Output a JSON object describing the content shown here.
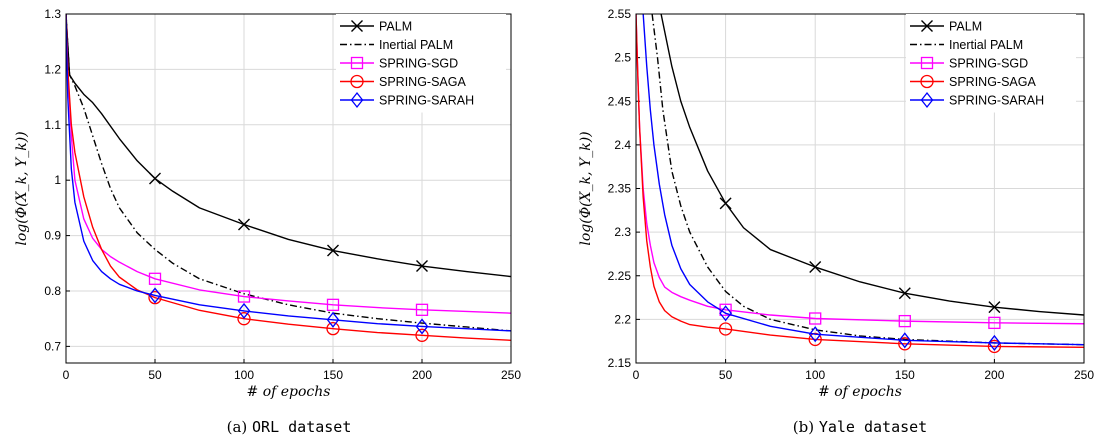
{
  "colors": {
    "palm": "#000000",
    "inertial_palm": "#000000",
    "sgd": "#ff00ff",
    "saga": "#ff0000",
    "sarah": "#0000ff"
  },
  "chart_data": [
    {
      "type": "line",
      "caption_prefix": "(a) ",
      "caption_dataset": "ORL dataset",
      "xlabel": "# of epochs",
      "ylabel": "log(Φ(X_k, Y_k))",
      "xlim": [
        0,
        250
      ],
      "ylim": [
        0.67,
        1.3
      ],
      "xticks": [
        "0",
        "50",
        "100",
        "150",
        "200",
        "250"
      ],
      "yticks": [
        "0.7",
        "0.8",
        "0.9",
        "1",
        "1.1",
        "1.2",
        "1.3"
      ],
      "grid": true,
      "legend_position": "top-right",
      "series": [
        {
          "name": "PALM",
          "style": "solid",
          "marker": "x",
          "x": [
            0,
            2,
            5,
            10,
            15,
            20,
            30,
            40,
            50,
            60,
            75,
            100,
            125,
            150,
            175,
            200,
            225,
            250
          ],
          "y": [
            1.3,
            1.19,
            1.175,
            1.155,
            1.14,
            1.12,
            1.075,
            1.035,
            1.003,
            0.98,
            0.95,
            0.92,
            0.893,
            0.873,
            0.858,
            0.845,
            0.835,
            0.826
          ]
        },
        {
          "name": "Inertial PALM",
          "style": "dashdot",
          "marker": "none",
          "x": [
            0,
            2,
            5,
            10,
            15,
            20,
            25,
            30,
            40,
            50,
            60,
            75,
            100,
            125,
            150,
            175,
            200,
            225,
            250
          ],
          "y": [
            1.3,
            1.19,
            1.17,
            1.13,
            1.08,
            1.03,
            0.985,
            0.95,
            0.905,
            0.875,
            0.85,
            0.822,
            0.795,
            0.775,
            0.76,
            0.75,
            0.742,
            0.735,
            0.728
          ]
        },
        {
          "name": "SPRING-SGD",
          "style": "solid",
          "marker": "square",
          "x": [
            0,
            1,
            3,
            5,
            10,
            15,
            20,
            25,
            30,
            40,
            50,
            75,
            100,
            125,
            150,
            175,
            200,
            225,
            250
          ],
          "y": [
            1.3,
            1.2,
            1.08,
            1.0,
            0.93,
            0.895,
            0.875,
            0.862,
            0.852,
            0.835,
            0.822,
            0.802,
            0.79,
            0.782,
            0.775,
            0.77,
            0.766,
            0.763,
            0.76
          ]
        },
        {
          "name": "SPRING-SAGA",
          "style": "solid",
          "marker": "circle",
          "x": [
            0,
            1,
            3,
            5,
            10,
            15,
            20,
            25,
            30,
            40,
            50,
            75,
            100,
            125,
            150,
            175,
            200,
            225,
            250
          ],
          "y": [
            1.3,
            1.2,
            1.1,
            1.05,
            0.97,
            0.915,
            0.875,
            0.845,
            0.825,
            0.802,
            0.788,
            0.765,
            0.75,
            0.74,
            0.732,
            0.725,
            0.72,
            0.715,
            0.711
          ]
        },
        {
          "name": "SPRING-SARAH",
          "style": "solid",
          "marker": "diamond",
          "x": [
            0,
            1,
            3,
            5,
            10,
            15,
            20,
            25,
            30,
            40,
            50,
            75,
            100,
            125,
            150,
            175,
            200,
            225,
            250
          ],
          "y": [
            1.3,
            1.15,
            1.02,
            0.96,
            0.89,
            0.855,
            0.835,
            0.822,
            0.812,
            0.8,
            0.792,
            0.775,
            0.764,
            0.755,
            0.748,
            0.741,
            0.736,
            0.732,
            0.728
          ]
        }
      ]
    },
    {
      "type": "line",
      "caption_prefix": "(b) ",
      "caption_dataset": "Yale dataset",
      "xlabel": "# of epochs",
      "ylabel": "log(Φ(X_k, Y_k))",
      "xlim": [
        0,
        250
      ],
      "ylim": [
        2.15,
        2.55
      ],
      "xticks": [
        "0",
        "50",
        "100",
        "150",
        "200",
        "250"
      ],
      "yticks": [
        "2.15",
        "2.2",
        "2.25",
        "2.3",
        "2.35",
        "2.4",
        "2.45",
        "2.5",
        "2.55"
      ],
      "grid": true,
      "legend_position": "top-right",
      "series": [
        {
          "name": "PALM",
          "style": "solid",
          "marker": "x",
          "x": [
            14,
            20,
            25,
            30,
            40,
            50,
            60,
            75,
            100,
            125,
            150,
            175,
            200,
            225,
            250
          ],
          "y": [
            2.55,
            2.49,
            2.45,
            2.42,
            2.37,
            2.333,
            2.305,
            2.28,
            2.26,
            2.243,
            2.23,
            2.221,
            2.214,
            2.209,
            2.205
          ]
        },
        {
          "name": "Inertial PALM",
          "style": "dashdot",
          "marker": "none",
          "x": [
            9,
            12,
            15,
            20,
            25,
            30,
            40,
            50,
            60,
            75,
            100,
            125,
            150,
            175,
            200,
            225,
            250
          ],
          "y": [
            2.55,
            2.5,
            2.44,
            2.37,
            2.33,
            2.3,
            2.26,
            2.232,
            2.215,
            2.2,
            2.188,
            2.181,
            2.177,
            2.175,
            2.173,
            2.172,
            2.171
          ]
        },
        {
          "name": "SPRING-SGD",
          "style": "solid",
          "marker": "square",
          "x": [
            0,
            1,
            2,
            4,
            6,
            8,
            10,
            13,
            16,
            20,
            25,
            30,
            40,
            50,
            75,
            100,
            150,
            200,
            250
          ],
          "y": [
            2.55,
            2.48,
            2.42,
            2.35,
            2.31,
            2.285,
            2.265,
            2.248,
            2.237,
            2.231,
            2.226,
            2.222,
            2.215,
            2.211,
            2.205,
            2.201,
            2.198,
            2.196,
            2.195
          ]
        },
        {
          "name": "SPRING-SAGA",
          "style": "solid",
          "marker": "circle",
          "x": [
            0,
            1,
            2,
            4,
            6,
            8,
            10,
            13,
            16,
            20,
            25,
            30,
            40,
            50,
            75,
            100,
            150,
            200,
            250
          ],
          "y": [
            2.55,
            2.48,
            2.42,
            2.34,
            2.29,
            2.26,
            2.238,
            2.22,
            2.21,
            2.203,
            2.198,
            2.194,
            2.191,
            2.189,
            2.182,
            2.177,
            2.172,
            2.169,
            2.168
          ]
        },
        {
          "name": "SPRING-SARAH",
          "style": "solid",
          "marker": "diamond",
          "x": [
            4,
            6,
            8,
            10,
            13,
            16,
            20,
            25,
            30,
            40,
            50,
            75,
            100,
            150,
            200,
            250
          ],
          "y": [
            2.55,
            2.49,
            2.44,
            2.4,
            2.355,
            2.32,
            2.285,
            2.258,
            2.24,
            2.22,
            2.207,
            2.192,
            2.183,
            2.176,
            2.173,
            2.171
          ]
        }
      ]
    }
  ]
}
